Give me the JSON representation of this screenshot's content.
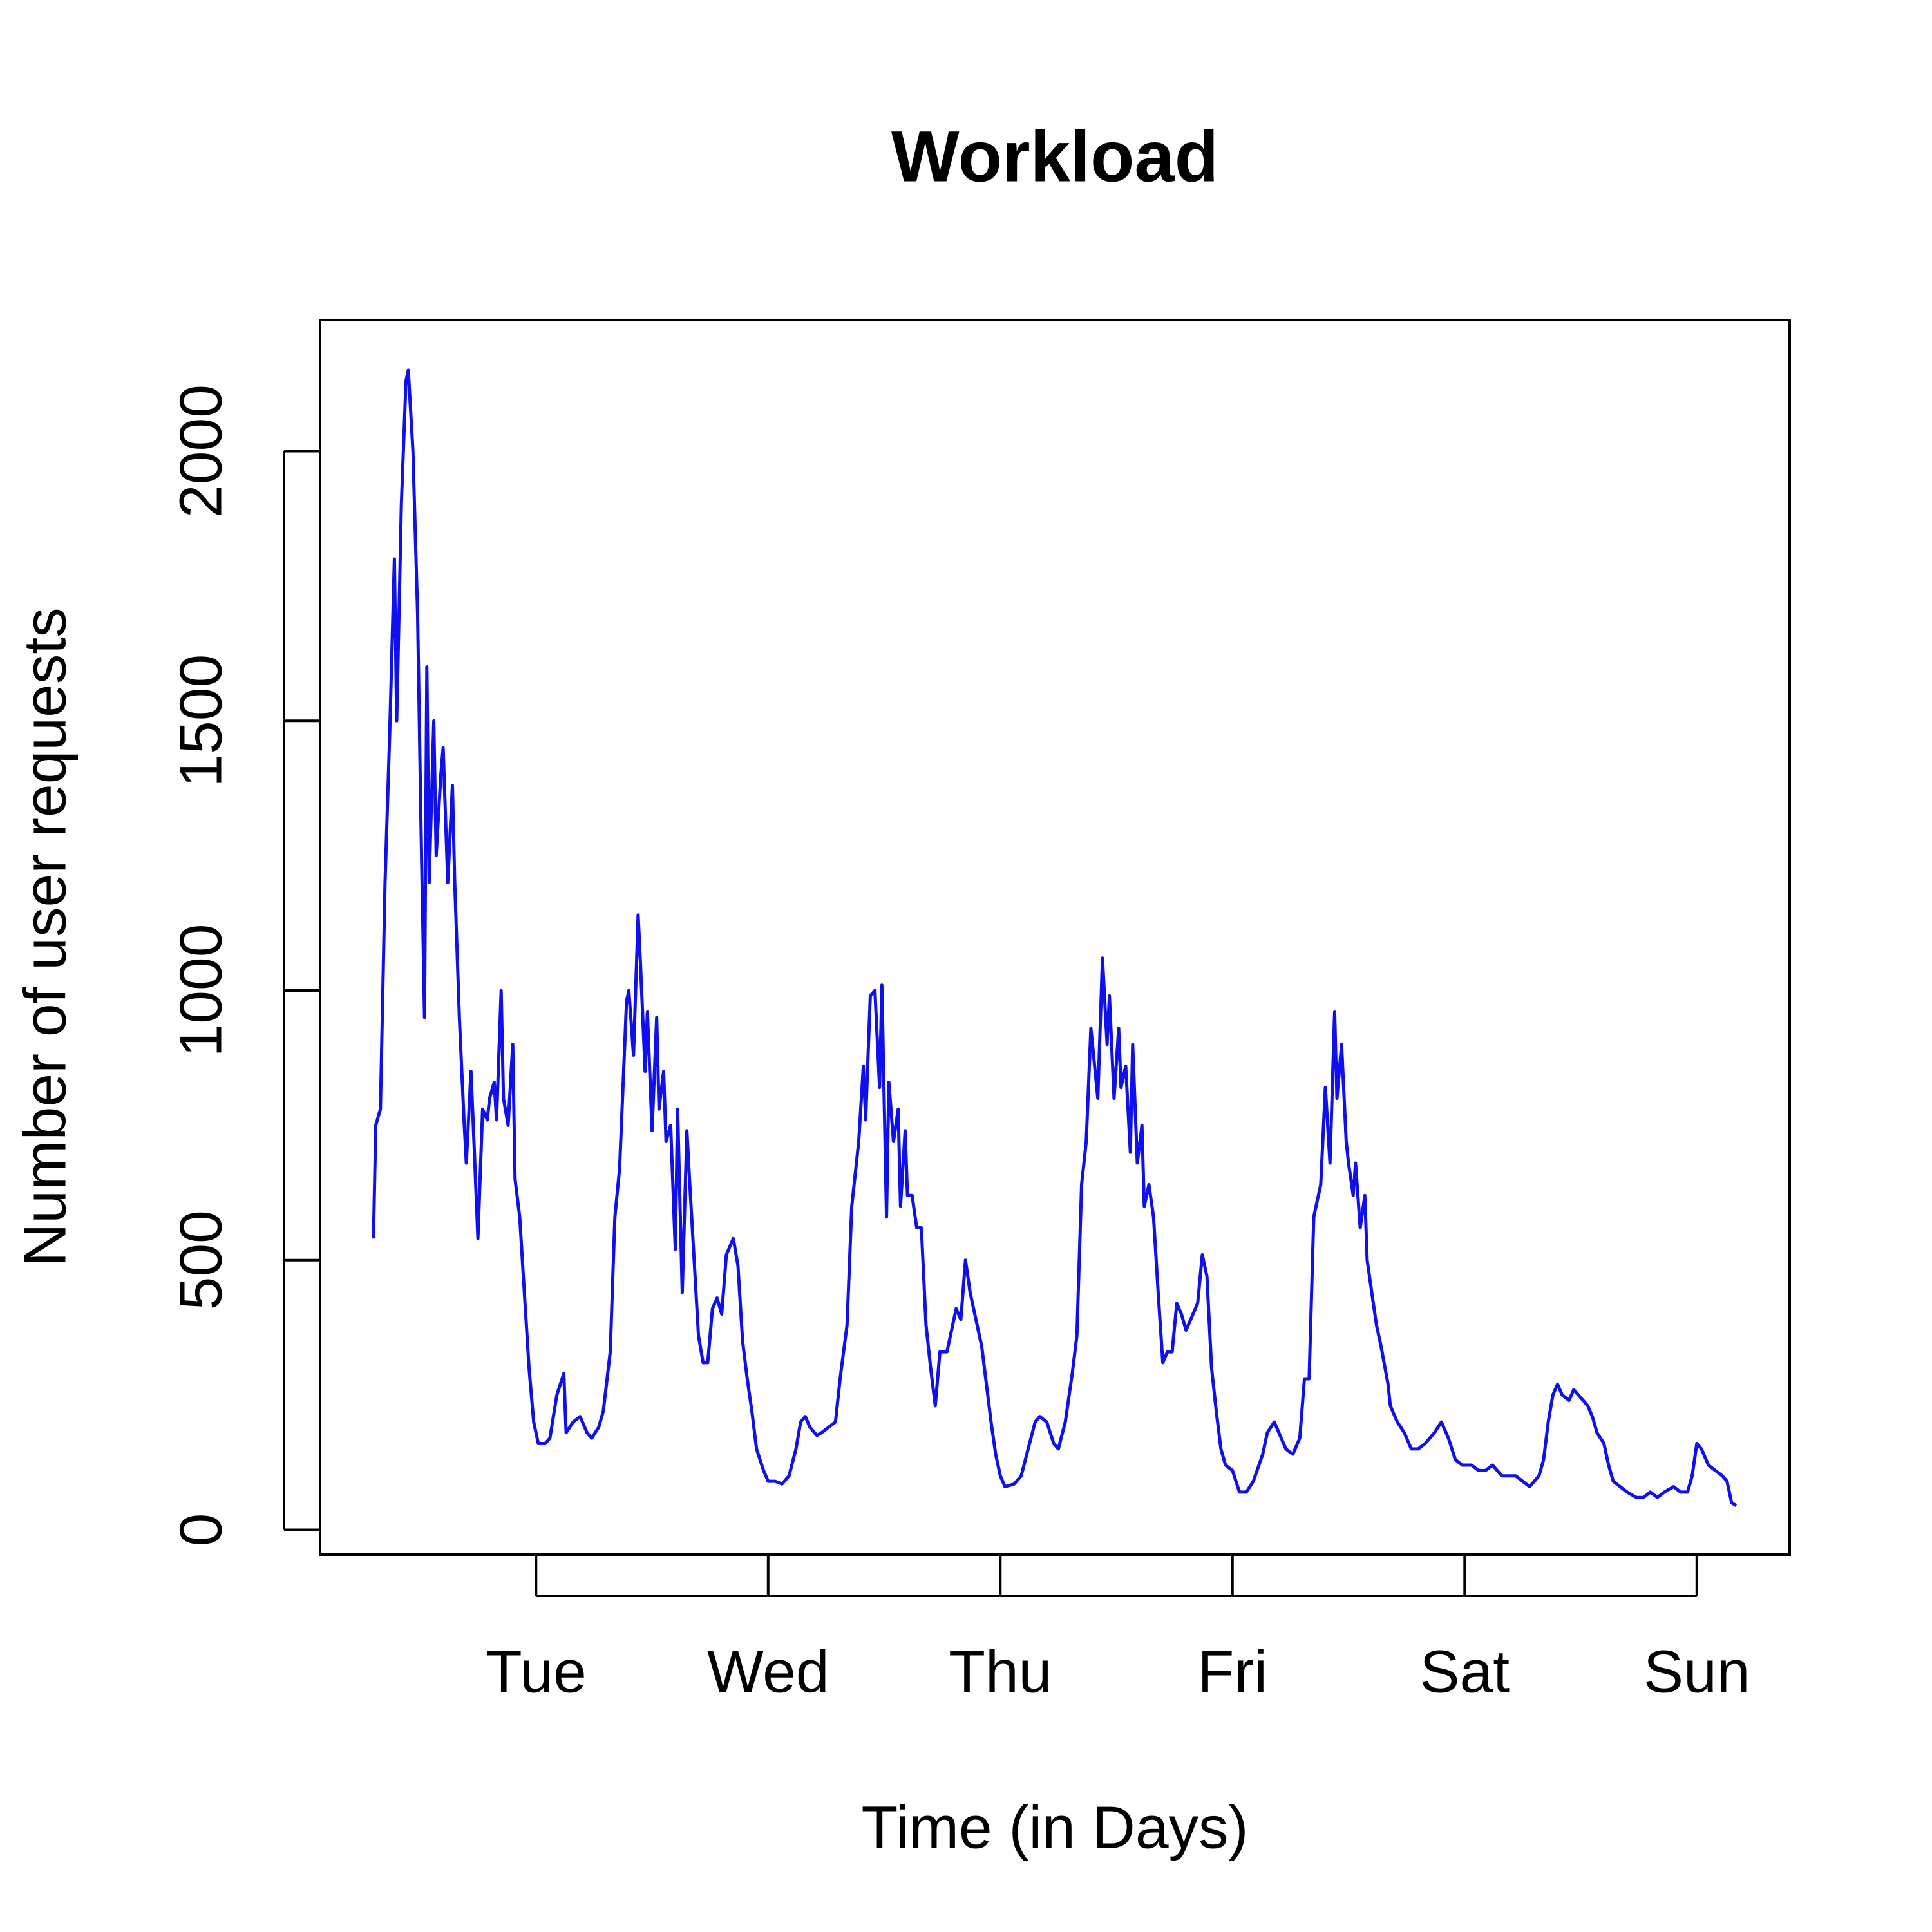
{
  "chart_data": {
    "type": "line",
    "title": "Workload",
    "x_label": "Time (in Days)",
    "y_label": "Number of user requests",
    "color": "#1010ee",
    "x": [
      0.3,
      0.31,
      0.33,
      0.35,
      0.37,
      0.39,
      0.4,
      0.42,
      0.44,
      0.45,
      0.47,
      0.49,
      0.505,
      0.52,
      0.53,
      0.54,
      0.56,
      0.57,
      0.59,
      0.6,
      0.62,
      0.64,
      0.65,
      0.67,
      0.69,
      0.7,
      0.72,
      0.73,
      0.75,
      0.77,
      0.79,
      0.8,
      0.82,
      0.83,
      0.85,
      0.86,
      0.88,
      0.9,
      0.91,
      0.93,
      0.95,
      0.97,
      0.99,
      1.01,
      1.04,
      1.06,
      1.09,
      1.12,
      1.13,
      1.16,
      1.19,
      1.22,
      1.24,
      1.27,
      1.29,
      1.32,
      1.34,
      1.36,
      1.39,
      1.4,
      1.42,
      1.44,
      1.45,
      1.47,
      1.48,
      1.5,
      1.52,
      1.53,
      1.55,
      1.56,
      1.58,
      1.6,
      1.61,
      1.63,
      1.65,
      1.66,
      1.68,
      1.7,
      1.72,
      1.74,
      1.76,
      1.78,
      1.8,
      1.82,
      1.85,
      1.87,
      1.89,
      1.91,
      1.93,
      1.95,
      1.98,
      2.0,
      2.03,
      2.06,
      2.09,
      2.12,
      2.14,
      2.16,
      2.18,
      2.21,
      2.23,
      2.26,
      2.29,
      2.31,
      2.34,
      2.36,
      2.39,
      2.41,
      2.42,
      2.44,
      2.46,
      2.48,
      2.49,
      2.51,
      2.52,
      2.54,
      2.56,
      2.57,
      2.59,
      2.6,
      2.62,
      2.64,
      2.66,
      2.68,
      2.7,
      2.72,
      2.74,
      2.77,
      2.79,
      2.81,
      2.83,
      2.85,
      2.87,
      2.89,
      2.92,
      2.94,
      2.96,
      2.98,
      3.0,
      3.02,
      3.06,
      3.09,
      3.12,
      3.15,
      3.17,
      3.2,
      3.23,
      3.25,
      3.28,
      3.31,
      3.33,
      3.35,
      3.37,
      3.39,
      3.42,
      3.44,
      3.46,
      3.47,
      3.49,
      3.51,
      3.52,
      3.54,
      3.56,
      3.57,
      3.59,
      3.61,
      3.62,
      3.64,
      3.66,
      3.68,
      3.7,
      3.72,
      3.74,
      3.76,
      3.78,
      3.8,
      3.82,
      3.85,
      3.87,
      3.89,
      3.91,
      3.93,
      3.95,
      3.97,
      4.0,
      4.03,
      4.06,
      4.09,
      4.13,
      4.15,
      4.18,
      4.21,
      4.23,
      4.26,
      4.29,
      4.31,
      4.33,
      4.35,
      4.38,
      4.4,
      4.42,
      4.44,
      4.45,
      4.47,
      4.49,
      4.5,
      4.52,
      4.53,
      4.55,
      4.57,
      4.58,
      4.6,
      4.62,
      4.64,
      4.67,
      4.68,
      4.71,
      4.74,
      4.77,
      4.8,
      4.83,
      4.87,
      4.9,
      4.93,
      4.96,
      4.99,
      5.03,
      5.06,
      5.09,
      5.12,
      5.16,
      5.19,
      5.22,
      5.25,
      5.28,
      5.32,
      5.34,
      5.36,
      5.38,
      5.4,
      5.42,
      5.45,
      5.47,
      5.49,
      5.51,
      5.53,
      5.55,
      5.57,
      5.6,
      5.62,
      5.64,
      5.67,
      5.7,
      5.74,
      5.77,
      5.8,
      5.83,
      5.86,
      5.9,
      5.93,
      5.96,
      5.98,
      6.0,
      6.02,
      6.05,
      6.08,
      6.11,
      6.13,
      6.15,
      6.17
    ],
    "values": [
      540,
      750,
      780,
      1200,
      1480,
      1800,
      1500,
      1900,
      2130,
      2150,
      2000,
      1700,
      1300,
      950,
      1600,
      1200,
      1500,
      1250,
      1400,
      1450,
      1200,
      1380,
      1200,
      950,
      760,
      680,
      850,
      750,
      540,
      780,
      760,
      800,
      830,
      760,
      1000,
      800,
      750,
      900,
      650,
      580,
      440,
      300,
      200,
      160,
      160,
      170,
      250,
      290,
      180,
      200,
      210,
      180,
      170,
      190,
      220,
      330,
      580,
      670,
      980,
      1000,
      880,
      1140,
      1050,
      850,
      960,
      740,
      950,
      780,
      850,
      720,
      750,
      520,
      780,
      440,
      740,
      660,
      510,
      360,
      310,
      310,
      410,
      430,
      400,
      510,
      540,
      490,
      350,
      280,
      220,
      150,
      110,
      90,
      90,
      85,
      100,
      150,
      200,
      210,
      190,
      175,
      180,
      190,
      200,
      280,
      380,
      600,
      720,
      860,
      760,
      990,
      1000,
      820,
      1010,
      580,
      830,
      720,
      780,
      600,
      740,
      620,
      620,
      560,
      560,
      380,
      300,
      230,
      330,
      330,
      370,
      410,
      390,
      500,
      440,
      400,
      340,
      270,
      200,
      140,
      100,
      80,
      85,
      100,
      150,
      200,
      210,
      200,
      160,
      150,
      200,
      290,
      360,
      640,
      720,
      930,
      800,
      1060,
      900,
      990,
      800,
      930,
      820,
      860,
      700,
      900,
      680,
      750,
      600,
      640,
      580,
      440,
      310,
      330,
      330,
      420,
      400,
      370,
      390,
      420,
      510,
      470,
      300,
      220,
      150,
      120,
      110,
      70,
      70,
      90,
      140,
      180,
      200,
      170,
      150,
      140,
      170,
      280,
      280,
      580,
      640,
      820,
      680,
      960,
      800,
      900,
      720,
      680,
      620,
      680,
      560,
      620,
      500,
      440,
      380,
      340,
      270,
      230,
      200,
      180,
      150,
      150,
      160,
      180,
      200,
      170,
      130,
      120,
      120,
      110,
      110,
      120,
      100,
      100,
      100,
      90,
      80,
      100,
      130,
      200,
      250,
      270,
      250,
      240,
      260,
      250,
      240,
      230,
      210,
      180,
      160,
      120,
      90,
      80,
      70,
      60,
      60,
      70,
      60,
      70,
      80,
      70,
      70,
      100,
      160,
      150,
      120,
      110,
      100,
      90,
      50,
      45
    ],
    "xlim": [
      0.07,
      6.4
    ],
    "xticks": [
      {
        "value": 1,
        "label": "Tue"
      },
      {
        "value": 2,
        "label": "Wed"
      },
      {
        "value": 3,
        "label": "Thu"
      },
      {
        "value": 4,
        "label": "Fri"
      },
      {
        "value": 5,
        "label": "Sat"
      },
      {
        "value": 6,
        "label": "Sun"
      }
    ],
    "ylim": [
      -46,
      2243
    ],
    "yticks": [
      0,
      500,
      1000,
      1500,
      2000
    ]
  }
}
